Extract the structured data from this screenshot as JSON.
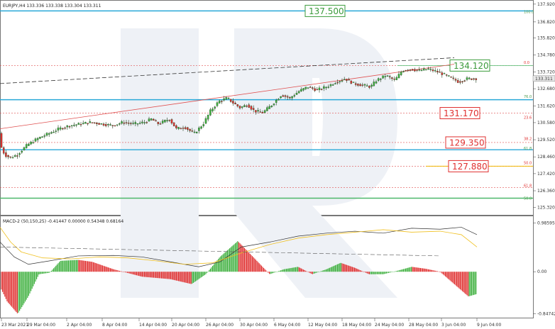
{
  "chart_data": {
    "type": "candlestick",
    "title": "EURJPY,H4  133.336 133.338 133.304 133.311",
    "watermark": "R",
    "price_axis": {
      "ylim": [
        125.0,
        138.0
      ],
      "ticks": [
        "137.920",
        "136.820",
        "135.820",
        "134.780",
        "133.720",
        "132.680",
        "131.620",
        "130.580",
        "129.520",
        "128.460",
        "127.420",
        "126.360",
        "125.320"
      ],
      "current_price": "133.311"
    },
    "time_axis": {
      "labels": [
        "23 Mar 2021",
        "29 Mar 04:00",
        "2 Apr 04:00",
        "8 Apr 04:00",
        "14 Apr 04:00",
        "20 Apr 04:00",
        "26 Apr 04:00",
        "30 Apr 04:00",
        "6 May 04:00",
        "12 May 04:00",
        "18 May 04:00",
        "24 May 04:00",
        "28 May 04:00",
        "3 Jun 04:00",
        "9 Jun 04:00"
      ]
    },
    "price_series": [
      [
        0,
        130.1
      ],
      [
        2,
        129.2
      ],
      [
        8,
        128.6
      ],
      [
        16,
        128.4
      ],
      [
        26,
        128.6
      ],
      [
        40,
        129.2
      ],
      [
        55,
        129.6
      ],
      [
        70,
        129.9
      ],
      [
        85,
        130.2
      ],
      [
        100,
        130.4
      ],
      [
        115,
        130.5
      ],
      [
        130,
        130.6
      ],
      [
        145,
        130.5
      ],
      [
        160,
        130.4
      ],
      [
        175,
        130.6
      ],
      [
        190,
        130.5
      ],
      [
        205,
        130.6
      ],
      [
        215,
        130.8
      ],
      [
        225,
        130.5
      ],
      [
        240,
        130.8
      ],
      [
        250,
        130.2
      ],
      [
        262,
        130.3
      ],
      [
        275,
        129.9
      ],
      [
        288,
        130.5
      ],
      [
        298,
        131.3
      ],
      [
        310,
        131.9
      ],
      [
        322,
        132.1
      ],
      [
        330,
        131.8
      ],
      [
        340,
        131.5
      ],
      [
        350,
        131.7
      ],
      [
        360,
        131.3
      ],
      [
        372,
        131.2
      ],
      [
        385,
        131.7
      ],
      [
        398,
        132.3
      ],
      [
        410,
        132.1
      ],
      [
        422,
        132.5
      ],
      [
        435,
        132.8
      ],
      [
        448,
        132.6
      ],
      [
        462,
        132.8
      ],
      [
        475,
        133.1
      ],
      [
        488,
        133.3
      ],
      [
        500,
        133.0
      ],
      [
        512,
        132.9
      ],
      [
        524,
        132.8
      ],
      [
        532,
        133.2
      ],
      [
        545,
        133.5
      ],
      [
        558,
        133.2
      ],
      [
        568,
        133.8
      ],
      [
        580,
        133.9
      ],
      [
        592,
        133.8
      ],
      [
        605,
        133.9
      ],
      [
        620,
        133.7
      ],
      [
        635,
        133.4
      ],
      [
        648,
        133.1
      ],
      [
        660,
        133.3
      ],
      [
        672,
        133.31
      ]
    ],
    "levels": [
      {
        "price": 137.5,
        "label": "137.500",
        "color": "#3a9a3a"
      },
      {
        "price": 134.12,
        "label": "134.120",
        "color": "#3a9a3a"
      },
      {
        "price": 131.17,
        "label": "131.170",
        "color": "#e03030"
      },
      {
        "price": 129.35,
        "label": "129.350",
        "color": "#e03030"
      },
      {
        "price": 127.88,
        "label": "127.880",
        "color": "#e03030"
      }
    ],
    "fib_labels": [
      "100.0",
      "0.0",
      "76.0",
      "23.6",
      "38.2",
      "61.8",
      "50.0",
      "61.8",
      "50.0"
    ],
    "indicator": {
      "name": "MACD-2 (50,150,25) -0.41447 0.00000 0.54348 0.68164",
      "ticks": [
        "0.98595",
        "0.00",
        "-0.84742"
      ],
      "ylim": [
        -0.9,
        1.05
      ]
    }
  }
}
